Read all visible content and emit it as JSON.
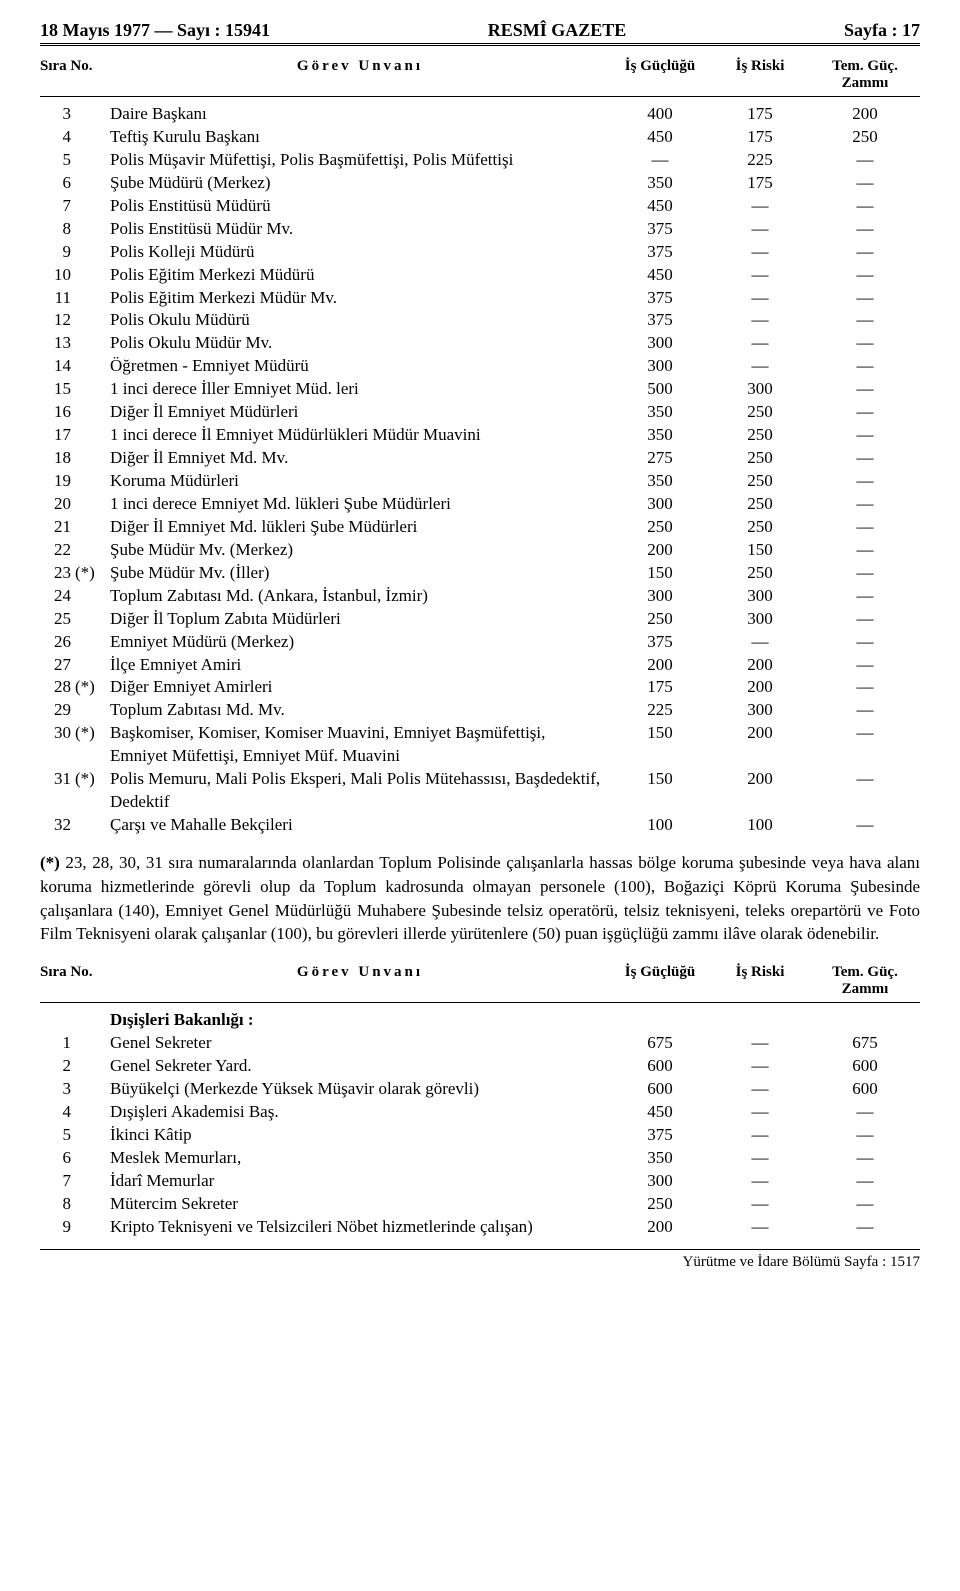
{
  "header": {
    "left": "18 Mayıs 1977 — Sayı : 15941",
    "center": "RESMÎ GAZETE",
    "right": "Sayfa : 17"
  },
  "columns": {
    "sira": "Sıra No.",
    "gorev": "Görev Unvanı",
    "guc": "İş Güçlüğü",
    "risk": "İş Riski",
    "zam_top": "Tem. Güç.",
    "zam_bot": "Zammı"
  },
  "rows1": [
    {
      "n": "3",
      "s": "",
      "g": "Daire Başkanı",
      "guc": "400",
      "risk": "175",
      "zam": "200"
    },
    {
      "n": "4",
      "s": "",
      "g": "Teftiş Kurulu Başkanı",
      "guc": "450",
      "risk": "175",
      "zam": "250"
    },
    {
      "n": "5",
      "s": "",
      "g": "Polis Müşavir Müfettişi, Polis Başmüfettişi, Polis Müfettişi",
      "guc": "—",
      "risk": "225",
      "zam": "—"
    },
    {
      "n": "6",
      "s": "",
      "g": "Şube Müdürü (Merkez)",
      "guc": "350",
      "risk": "175",
      "zam": "—"
    },
    {
      "n": "7",
      "s": "",
      "g": "Polis Enstitüsü Müdürü",
      "guc": "450",
      "risk": "—",
      "zam": "—"
    },
    {
      "n": "8",
      "s": "",
      "g": "Polis Enstitüsü Müdür Mv.",
      "guc": "375",
      "risk": "—",
      "zam": "—"
    },
    {
      "n": "9",
      "s": "",
      "g": "Polis Kolleji Müdürü",
      "guc": "375",
      "risk": "—",
      "zam": "—"
    },
    {
      "n": "10",
      "s": "",
      "g": "Polis Eğitim Merkezi Müdürü",
      "guc": "450",
      "risk": "—",
      "zam": "—"
    },
    {
      "n": "11",
      "s": "",
      "g": "Polis Eğitim Merkezi Müdür Mv.",
      "guc": "375",
      "risk": "—",
      "zam": "—"
    },
    {
      "n": "12",
      "s": "",
      "g": "Polis Okulu Müdürü",
      "guc": "375",
      "risk": "—",
      "zam": "—"
    },
    {
      "n": "13",
      "s": "",
      "g": "Polis Okulu Müdür Mv.",
      "guc": "300",
      "risk": "—",
      "zam": "—"
    },
    {
      "n": "14",
      "s": "",
      "g": "Öğretmen - Emniyet Müdürü",
      "guc": "300",
      "risk": "—",
      "zam": "—"
    },
    {
      "n": "15",
      "s": "",
      "g": "1 inci derece İller Emniyet Müd. leri",
      "guc": "500",
      "risk": "300",
      "zam": "—"
    },
    {
      "n": "16",
      "s": "",
      "g": "Diğer İl Emniyet Müdürleri",
      "guc": "350",
      "risk": "250",
      "zam": "—"
    },
    {
      "n": "17",
      "s": "",
      "g": "1 inci derece İl Emniyet Müdürlükleri Müdür Muavini",
      "guc": "350",
      "risk": "250",
      "zam": "—"
    },
    {
      "n": "18",
      "s": "",
      "g": "Diğer İl Emniyet Md. Mv.",
      "guc": "275",
      "risk": "250",
      "zam": "—"
    },
    {
      "n": "19",
      "s": "",
      "g": "Koruma Müdürleri",
      "guc": "350",
      "risk": "250",
      "zam": "—"
    },
    {
      "n": "20",
      "s": "",
      "g": "1 inci derece Emniyet Md. lükleri Şube Müdürleri",
      "guc": "300",
      "risk": "250",
      "zam": "—"
    },
    {
      "n": "21",
      "s": "",
      "g": "Diğer İl Emniyet Md. lükleri Şube Müdürleri",
      "guc": "250",
      "risk": "250",
      "zam": "—"
    },
    {
      "n": "22",
      "s": "",
      "g": "Şube Müdür Mv. (Merkez)",
      "guc": "200",
      "risk": "150",
      "zam": "—"
    },
    {
      "n": "23",
      "s": "(*)",
      "g": "Şube Müdür Mv. (İller)",
      "guc": "150",
      "risk": "250",
      "zam": "—"
    },
    {
      "n": "24",
      "s": "",
      "g": "Toplum Zabıtası Md. (Ankara, İstanbul, İzmir)",
      "guc": "300",
      "risk": "300",
      "zam": "—"
    },
    {
      "n": "25",
      "s": "",
      "g": "Diğer İl Toplum Zabıta Müdürleri",
      "guc": "250",
      "risk": "300",
      "zam": "—"
    },
    {
      "n": "26",
      "s": "",
      "g": "Emniyet Müdürü (Merkez)",
      "guc": "375",
      "risk": "—",
      "zam": "—"
    },
    {
      "n": "27",
      "s": "",
      "g": "İlçe Emniyet Amiri",
      "guc": "200",
      "risk": "200",
      "zam": "—"
    },
    {
      "n": "28",
      "s": "(*)",
      "g": "Diğer Emniyet Amirleri",
      "guc": "175",
      "risk": "200",
      "zam": "—"
    },
    {
      "n": "29",
      "s": "",
      "g": "Toplum Zabıtası Md. Mv.",
      "guc": "225",
      "risk": "300",
      "zam": "—"
    },
    {
      "n": "30",
      "s": "(*)",
      "g": "Başkomiser, Komiser, Komiser Muavini, Emniyet Başmüfettişi, Emniyet Müfettişi, Emniyet Müf. Muavini",
      "guc": "150",
      "risk": "200",
      "zam": "—"
    },
    {
      "n": "31",
      "s": "(*)",
      "g": "Polis Memuru, Mali Polis Eksperi, Mali Polis Mütehassısı, Başdedektif, Dedektif",
      "guc": "150",
      "risk": "200",
      "zam": "—"
    },
    {
      "n": "32",
      "s": "",
      "g": "Çarşı ve Mahalle Bekçileri",
      "guc": "100",
      "risk": "100",
      "zam": "—"
    }
  ],
  "footnote": {
    "label": "(*)",
    "text": "23, 28, 30, 31 sıra numaralarında olanlardan Toplum Polisinde çalışanlarla hassas bölge koruma şubesinde veya hava alanı koruma hizmetlerinde görevli olup da Toplum kadrosunda olmayan personele (100), Boğaziçi Köprü Koruma Şubesinde çalışanlara (140), Emniyet Genel Müdürlüğü Muhabere Şubesinde telsiz operatörü, telsiz teknisyeni, teleks orepartörü ve Foto Film Teknisyeni olarak çalışanlar (100), bu görevleri illerde yürütenlere (50) puan işgüçlüğü zammı ilâve olarak ödenebilir."
  },
  "section2_title": "Dışişleri Bakanlığı :",
  "rows2": [
    {
      "n": "1",
      "s": "",
      "g": "Genel Sekreter",
      "guc": "675",
      "risk": "—",
      "zam": "675"
    },
    {
      "n": "2",
      "s": "",
      "g": "Genel Sekreter Yard.",
      "guc": "600",
      "risk": "—",
      "zam": "600"
    },
    {
      "n": "3",
      "s": "",
      "g": "Büyükelçi (Merkezde Yüksek Müşavir olarak görevli)",
      "guc": "600",
      "risk": "—",
      "zam": "600"
    },
    {
      "n": "4",
      "s": "",
      "g": "Dışişleri Akademisi Baş.",
      "guc": "450",
      "risk": "—",
      "zam": "—"
    },
    {
      "n": "5",
      "s": "",
      "g": "İkinci Kâtip",
      "guc": "375",
      "risk": "—",
      "zam": "—"
    },
    {
      "n": "6",
      "s": "",
      "g": "Meslek Memurları,",
      "guc": "350",
      "risk": "—",
      "zam": "—"
    },
    {
      "n": "7",
      "s": "",
      "g": "İdarî Memurlar",
      "guc": "300",
      "risk": "—",
      "zam": "—"
    },
    {
      "n": "8",
      "s": "",
      "g": "Mütercim Sekreter",
      "guc": "250",
      "risk": "—",
      "zam": "—"
    },
    {
      "n": "9",
      "s": "",
      "g": "Kripto Teknisyeni ve Telsizcileri Nöbet hizmetlerinde çalışan)",
      "guc": "200",
      "risk": "—",
      "zam": "—"
    }
  ],
  "bottom": "Yürütme ve İdare Bölümü Sayfa : 1517"
}
